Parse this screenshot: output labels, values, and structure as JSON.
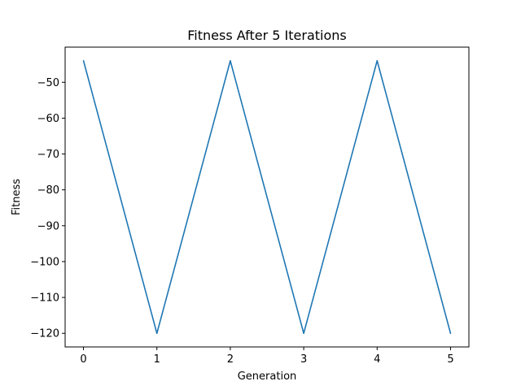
{
  "chart_data": {
    "type": "line",
    "title": "Fitness After 5 Iterations",
    "xlabel": "Generation",
    "ylabel": "Fitness",
    "x": [
      0,
      1,
      2,
      3,
      4,
      5
    ],
    "series": [
      {
        "values": [
          -44,
          -120,
          -44,
          -120,
          -44,
          -120
        ]
      }
    ],
    "xlim": [
      -0.25,
      5.25
    ],
    "ylim": [
      -123.8,
      -40.2
    ],
    "xticks": [
      0,
      1,
      2,
      3,
      4,
      5
    ],
    "yticks": [
      -50,
      -60,
      -70,
      -80,
      -90,
      -100,
      -110,
      -120
    ],
    "xtick_labels": [
      "0",
      "1",
      "2",
      "3",
      "4",
      "5"
    ],
    "ytick_labels": [
      "−50",
      "−60",
      "−70",
      "−80",
      "−90",
      "−100",
      "−110",
      "−120"
    ],
    "grid": false,
    "legend": "none",
    "colors": {
      "series": "#1f77b4",
      "axes": "#000000",
      "background": "#ffffff"
    }
  }
}
